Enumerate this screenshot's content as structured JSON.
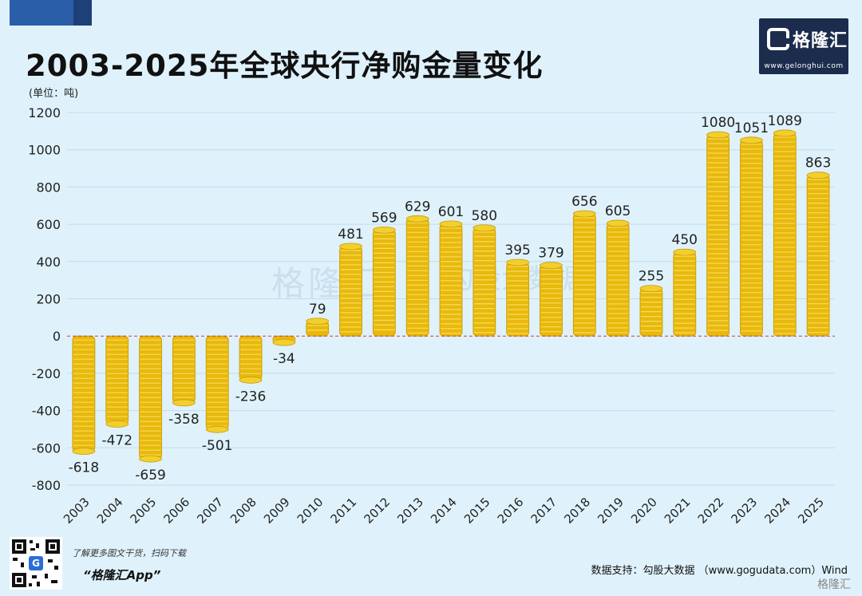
{
  "title": "2003-2025年全球央行净购金量变化",
  "unit_label": "(单位：吨)",
  "logo": {
    "name": "格隆汇",
    "url": "www.gelonghui.com"
  },
  "watermark": {
    "left": "格隆汇",
    "right": "勾股大数据"
  },
  "footer": {
    "promo": "了解更多图文干货，扫码下载",
    "app": "“格隆汇App”",
    "source": "数据支持：勾股大数据 （www.gogudata.com）Wind",
    "brand": "格隆汇"
  },
  "colors": {
    "background": "#dff2fb",
    "bar": "#e8b90c",
    "zero_line": "#d23b3b",
    "title_band": "#2b5ea8"
  },
  "chart_data": {
    "type": "bar",
    "title": "2003-2025年全球央行净购金量变化",
    "ylabel": "吨",
    "ylim": [
      -800,
      1200
    ],
    "yticks": [
      1200,
      1000,
      800,
      600,
      400,
      200,
      0,
      -200,
      -400,
      -600,
      -800
    ],
    "categories": [
      "2003",
      "2004",
      "2005",
      "2006",
      "2007",
      "2008",
      "2009",
      "2010",
      "2011",
      "2012",
      "2013",
      "2014",
      "2015",
      "2016",
      "2017",
      "2018",
      "2019",
      "2020",
      "2021",
      "2022",
      "2023",
      "2024",
      "2025"
    ],
    "values": [
      -618,
      -472,
      -659,
      -358,
      -501,
      -236,
      -34,
      79,
      481,
      569,
      629,
      601,
      580,
      395,
      379,
      656,
      605,
      255,
      450,
      1080,
      1051,
      1089,
      863
    ]
  }
}
